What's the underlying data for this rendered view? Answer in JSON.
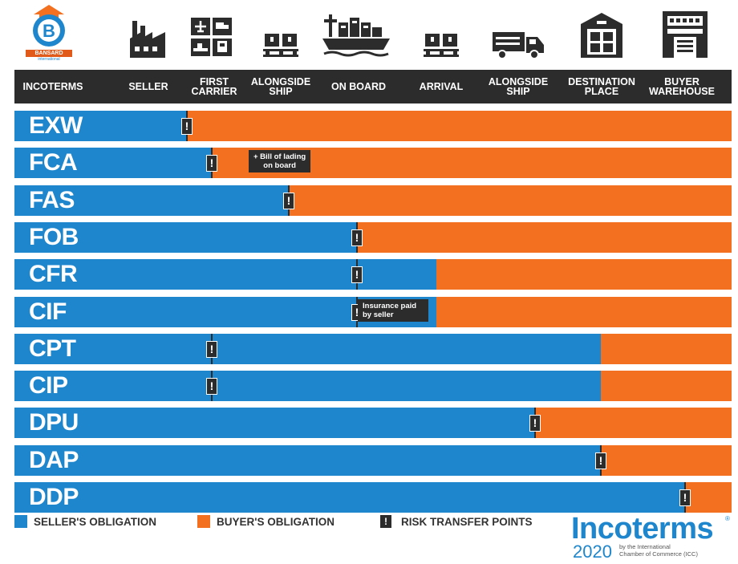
{
  "logo": {
    "name": "BANSARD",
    "sub": "international",
    "letter": "B"
  },
  "header": {
    "columns": [
      {
        "id": "incoterms",
        "label": "INCOTERMS"
      },
      {
        "id": "seller",
        "label": "SELLER"
      },
      {
        "id": "first-carrier",
        "label": "FIRST\nCARRIER"
      },
      {
        "id": "alongside-ship",
        "label": "ALONGSIDE\nSHIP"
      },
      {
        "id": "on-board",
        "label": "ON BOARD"
      },
      {
        "id": "arrival",
        "label": "ARRIVAL"
      },
      {
        "id": "alongside-ship-2",
        "label": "ALONGSIDE\nSHIP"
      },
      {
        "id": "destination-place",
        "label": "DESTINATION\nPLACE"
      },
      {
        "id": "buyer-warehouse",
        "label": "BUYER\nWAREHOUSE"
      }
    ],
    "icons": [
      "factory-icon",
      "transport-mix-icon",
      "pallet-icon",
      "cargo-ship-icon",
      "pallet-icon",
      "truck-icon",
      "warehouse-icon",
      "buyer-building-icon"
    ]
  },
  "rows": [
    {
      "code": "EXW",
      "seller_extent": 0.24,
      "risk": 0.24
    },
    {
      "code": "FCA",
      "seller_extent": 0.275,
      "risk": 0.275,
      "note": "+ Bill of lading\non board"
    },
    {
      "code": "FAS",
      "seller_extent": 0.383,
      "risk": 0.383
    },
    {
      "code": "FOB",
      "seller_extent": 0.478,
      "risk": 0.478
    },
    {
      "code": "CFR",
      "seller_extent": 0.588,
      "risk": 0.478
    },
    {
      "code": "CIF",
      "seller_extent": 0.588,
      "risk": 0.478,
      "note": "Insurance paid\nby seller"
    },
    {
      "code": "CPT",
      "seller_extent": 0.818,
      "risk": 0.275
    },
    {
      "code": "CIP",
      "seller_extent": 0.818,
      "risk": 0.275
    },
    {
      "code": "DPU",
      "seller_extent": 0.726,
      "risk": 0.726
    },
    {
      "code": "DAP",
      "seller_extent": 0.818,
      "risk": 0.818
    },
    {
      "code": "DDP",
      "seller_extent": 0.935,
      "risk": 0.935
    }
  ],
  "legend": {
    "seller": "SELLER'S OBLIGATION",
    "buyer": "BUYER'S OBLIGATION",
    "risk": "RISK TRANSFER POINTS",
    "risk_glyph": "!"
  },
  "incoterms_logo": {
    "word": "Incoterms",
    "reg": "®",
    "year": "2020",
    "sub": "by the International\nChamber of Commerce (ICC)"
  },
  "colors": {
    "seller": "#1e86cc",
    "buyer": "#f37021",
    "dark": "#2c2c2c"
  }
}
